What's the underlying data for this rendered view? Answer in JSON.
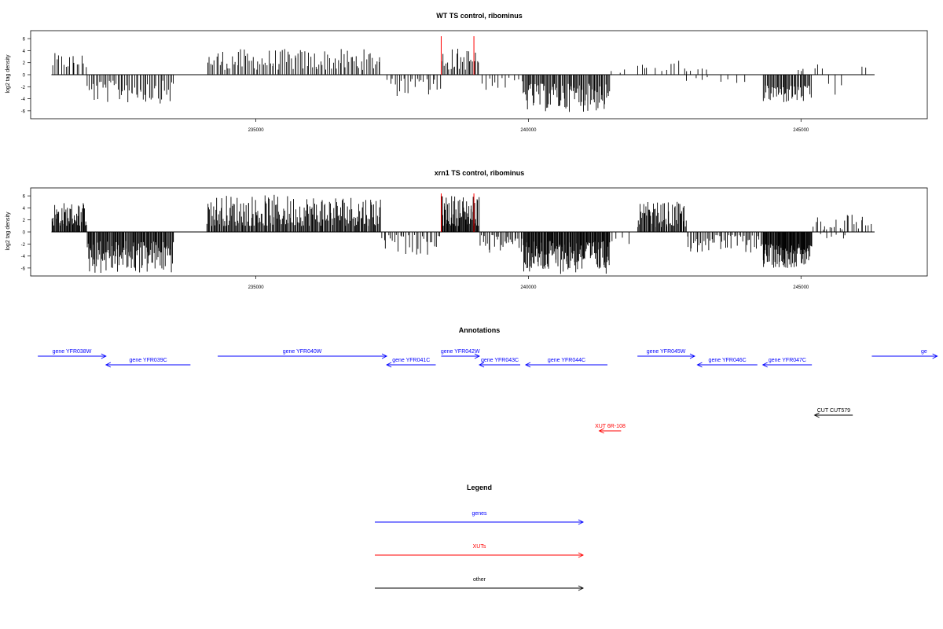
{
  "colors": {
    "genes": "#0000ff",
    "xuts": "#ff0000",
    "other": "#000000",
    "bars": "#000000",
    "marker": "#ff0000"
  },
  "chart_data": [
    {
      "type": "bar",
      "title": "WT TS control, ribominus",
      "ylabel": "log2 tag density",
      "xlim": [
        231200,
        247000
      ],
      "ylim": [
        -6.8,
        6.8
      ],
      "xticks": [
        235000,
        240000,
        245000
      ],
      "xtick_labels": [
        "235000",
        "240000",
        "245000"
      ],
      "yticks": [
        6,
        4,
        2,
        0,
        -2,
        -4,
        -6
      ],
      "ytick_labels": [
        "6",
        "4",
        "2",
        "0",
        "-2",
        "-4",
        "-6"
      ],
      "grid": false,
      "markers_x": [
        238400,
        239000
      ],
      "segments": [
        {
          "start": 231250,
          "end": 231900,
          "sign": 1,
          "min": 1.0,
          "max": 3.6,
          "n": 16
        },
        {
          "start": 231900,
          "end": 233500,
          "sign": -1,
          "min": 1.0,
          "max": 4.8,
          "n": 52
        },
        {
          "start": 234100,
          "end": 237300,
          "sign": 1,
          "min": 0.8,
          "max": 4.3,
          "n": 100
        },
        {
          "start": 237400,
          "end": 238400,
          "sign": -1,
          "min": 0.6,
          "max": 3.6,
          "n": 24
        },
        {
          "start": 238400,
          "end": 239100,
          "sign": 1,
          "min": 0.8,
          "max": 4.5,
          "n": 26
        },
        {
          "start": 239100,
          "end": 239900,
          "sign": -1,
          "min": 0.5,
          "max": 2.6,
          "n": 12
        },
        {
          "start": 239900,
          "end": 241500,
          "sign": -1,
          "min": 1.5,
          "max": 6.2,
          "n": 90
        },
        {
          "start": 241500,
          "end": 241800,
          "sign": 1,
          "min": 0.3,
          "max": 1.0,
          "n": 3
        },
        {
          "start": 242000,
          "end": 242200,
          "sign": 1,
          "min": 0.8,
          "max": 2.0,
          "n": 4
        },
        {
          "start": 242300,
          "end": 243300,
          "sign": 1,
          "min": 0.5,
          "max": 2.4,
          "n": 12
        },
        {
          "start": 242800,
          "end": 244000,
          "sign": -1,
          "min": 0.4,
          "max": 1.6,
          "n": 8
        },
        {
          "start": 244300,
          "end": 245200,
          "sign": -1,
          "min": 1.8,
          "max": 4.8,
          "n": 48
        },
        {
          "start": 244900,
          "end": 245100,
          "sign": 1,
          "min": 0.5,
          "max": 1.2,
          "n": 3
        },
        {
          "start": 245250,
          "end": 245400,
          "sign": 1,
          "min": 0.8,
          "max": 2.0,
          "n": 3
        },
        {
          "start": 245500,
          "end": 245800,
          "sign": -1,
          "min": 1.5,
          "max": 3.6,
          "n": 3
        },
        {
          "start": 246100,
          "end": 246200,
          "sign": 1,
          "min": 1.0,
          "max": 1.6,
          "n": 2
        }
      ]
    },
    {
      "type": "bar",
      "title": "xrn1 TS control, ribominus",
      "ylabel": "log2 tag density",
      "xlim": [
        231200,
        247000
      ],
      "ylim": [
        -6.8,
        6.8
      ],
      "xticks": [
        235000,
        240000,
        245000
      ],
      "xtick_labels": [
        "235000",
        "240000",
        "245000"
      ],
      "yticks": [
        6,
        4,
        2,
        0,
        -2,
        -4,
        -6
      ],
      "ytick_labels": [
        "6",
        "4",
        "2",
        "0",
        "-2",
        "-4",
        "-6"
      ],
      "grid": false,
      "markers_x": [
        238400,
        239000
      ],
      "segments": [
        {
          "start": 231250,
          "end": 231900,
          "sign": 1,
          "min": 1.0,
          "max": 5.0,
          "n": 50
        },
        {
          "start": 231900,
          "end": 233500,
          "sign": -1,
          "min": 1.5,
          "max": 7.0,
          "n": 120
        },
        {
          "start": 234100,
          "end": 237300,
          "sign": 1,
          "min": 1.0,
          "max": 6.2,
          "n": 200
        },
        {
          "start": 237300,
          "end": 238400,
          "sign": -1,
          "min": 0.5,
          "max": 3.8,
          "n": 30
        },
        {
          "start": 238400,
          "end": 239100,
          "sign": 1,
          "min": 1.0,
          "max": 6.2,
          "n": 60
        },
        {
          "start": 239100,
          "end": 239900,
          "sign": -1,
          "min": 0.5,
          "max": 3.5,
          "n": 30
        },
        {
          "start": 239900,
          "end": 241500,
          "sign": -1,
          "min": 1.5,
          "max": 7.0,
          "n": 140
        },
        {
          "start": 241500,
          "end": 241900,
          "sign": -1,
          "min": 0.5,
          "max": 2.0,
          "n": 4
        },
        {
          "start": 242000,
          "end": 242900,
          "sign": 1,
          "min": 0.8,
          "max": 5.0,
          "n": 60
        },
        {
          "start": 242900,
          "end": 244300,
          "sign": -1,
          "min": 0.5,
          "max": 3.5,
          "n": 50
        },
        {
          "start": 244300,
          "end": 245200,
          "sign": -1,
          "min": 2.0,
          "max": 6.0,
          "n": 90
        },
        {
          "start": 245200,
          "end": 246300,
          "sign": 1,
          "min": 0.3,
          "max": 3.2,
          "n": 25
        },
        {
          "start": 245300,
          "end": 245900,
          "sign": -1,
          "min": 0.3,
          "max": 1.2,
          "n": 6
        }
      ]
    }
  ],
  "annotations": {
    "title": "Annotations",
    "features": [
      {
        "label": "gene YFR038W",
        "start": 231000,
        "end": 232250,
        "strand": "+",
        "type": "genes",
        "row": 0
      },
      {
        "label": "gene YFR039C",
        "start": 232250,
        "end": 233800,
        "strand": "-",
        "type": "genes",
        "row": 1
      },
      {
        "label": "gene YFR040W",
        "start": 234300,
        "end": 237400,
        "strand": "+",
        "type": "genes",
        "row": 0
      },
      {
        "label": "gene YFR041C",
        "start": 237400,
        "end": 238300,
        "strand": "-",
        "type": "genes",
        "row": 1
      },
      {
        "label": "gene YFR042W",
        "start": 238400,
        "end": 239100,
        "strand": "+",
        "type": "genes",
        "row": 0
      },
      {
        "label": "gene YFR043C",
        "start": 239100,
        "end": 239850,
        "strand": "-",
        "type": "genes",
        "row": 1
      },
      {
        "label": "gene YFR044C",
        "start": 239950,
        "end": 241450,
        "strand": "-",
        "type": "genes",
        "row": 1
      },
      {
        "label": "gene YFR045W",
        "start": 242000,
        "end": 243050,
        "strand": "+",
        "type": "genes",
        "row": 0
      },
      {
        "label": "gene YFR046C",
        "start": 243100,
        "end": 244200,
        "strand": "-",
        "type": "genes",
        "row": 1
      },
      {
        "label": "gene YFR047C",
        "start": 244300,
        "end": 245200,
        "strand": "-",
        "type": "genes",
        "row": 1
      },
      {
        "label": "ge",
        "start": 246300,
        "end": 247500,
        "strand": "+",
        "type": "genes",
        "row": 0
      },
      {
        "label": "CUT CUT579",
        "start": 245250,
        "end": 245950,
        "strand": "-",
        "type": "other",
        "row": 2
      },
      {
        "label": "XUT 6R-108",
        "start": 241300,
        "end": 241700,
        "strand": "-",
        "type": "xuts",
        "row": 3
      }
    ]
  },
  "legend": {
    "title": "Legend",
    "items": [
      {
        "label": "genes",
        "type": "genes"
      },
      {
        "label": "XUTs",
        "type": "xuts"
      },
      {
        "label": "other",
        "type": "other"
      }
    ]
  }
}
